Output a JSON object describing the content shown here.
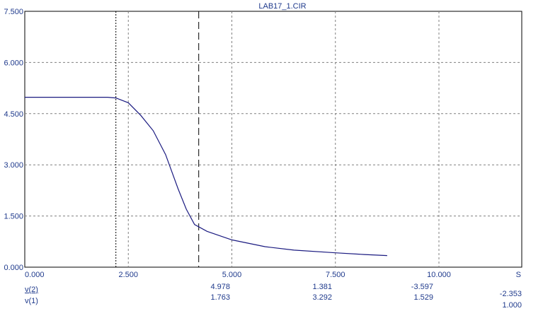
{
  "chart_data": {
    "type": "line",
    "title": "LAB17_1.CIR",
    "x_unit": "S",
    "xlim": [
      0,
      12
    ],
    "ylim": [
      0,
      7.5
    ],
    "x_ticks": [
      "0.000",
      "2.500",
      "5.000",
      "7.500",
      "10.000"
    ],
    "x_tick_values": [
      0,
      2.5,
      5,
      7.5,
      10
    ],
    "y_ticks": [
      "0.000",
      "1.500",
      "3.000",
      "4.500",
      "6.000",
      "7.500"
    ],
    "y_tick_values": [
      0,
      1.5,
      3,
      4.5,
      6,
      7.5
    ],
    "grid": true,
    "series": [
      {
        "x": [
          0,
          1.0,
          2.0,
          2.2,
          2.5,
          2.8,
          3.1,
          3.4,
          3.7,
          3.9,
          4.1,
          4.4,
          5.0,
          5.8,
          6.5,
          7.5,
          8.2,
          8.75
        ],
        "y": [
          4.98,
          4.98,
          4.98,
          4.96,
          4.82,
          4.45,
          4.0,
          3.3,
          2.3,
          1.7,
          1.25,
          1.05,
          0.8,
          0.6,
          0.5,
          0.42,
          0.37,
          0.34
        ]
      }
    ],
    "cursors": [
      {
        "x": 2.2,
        "style": "dotted"
      },
      {
        "x": 4.2,
        "style": "dashed"
      }
    ]
  },
  "readouts": {
    "row1": {
      "label": "v(2)",
      "values": [
        "4.978",
        "1.381",
        "-3.597",
        "-2.353"
      ]
    },
    "row2": {
      "label": "v(1)",
      "values": [
        "1.763",
        "3.292",
        "1.529",
        "1.000"
      ]
    }
  },
  "colors": {
    "curve": "#1a1a80",
    "grid": "#808080",
    "text": "#1f3a8c"
  }
}
